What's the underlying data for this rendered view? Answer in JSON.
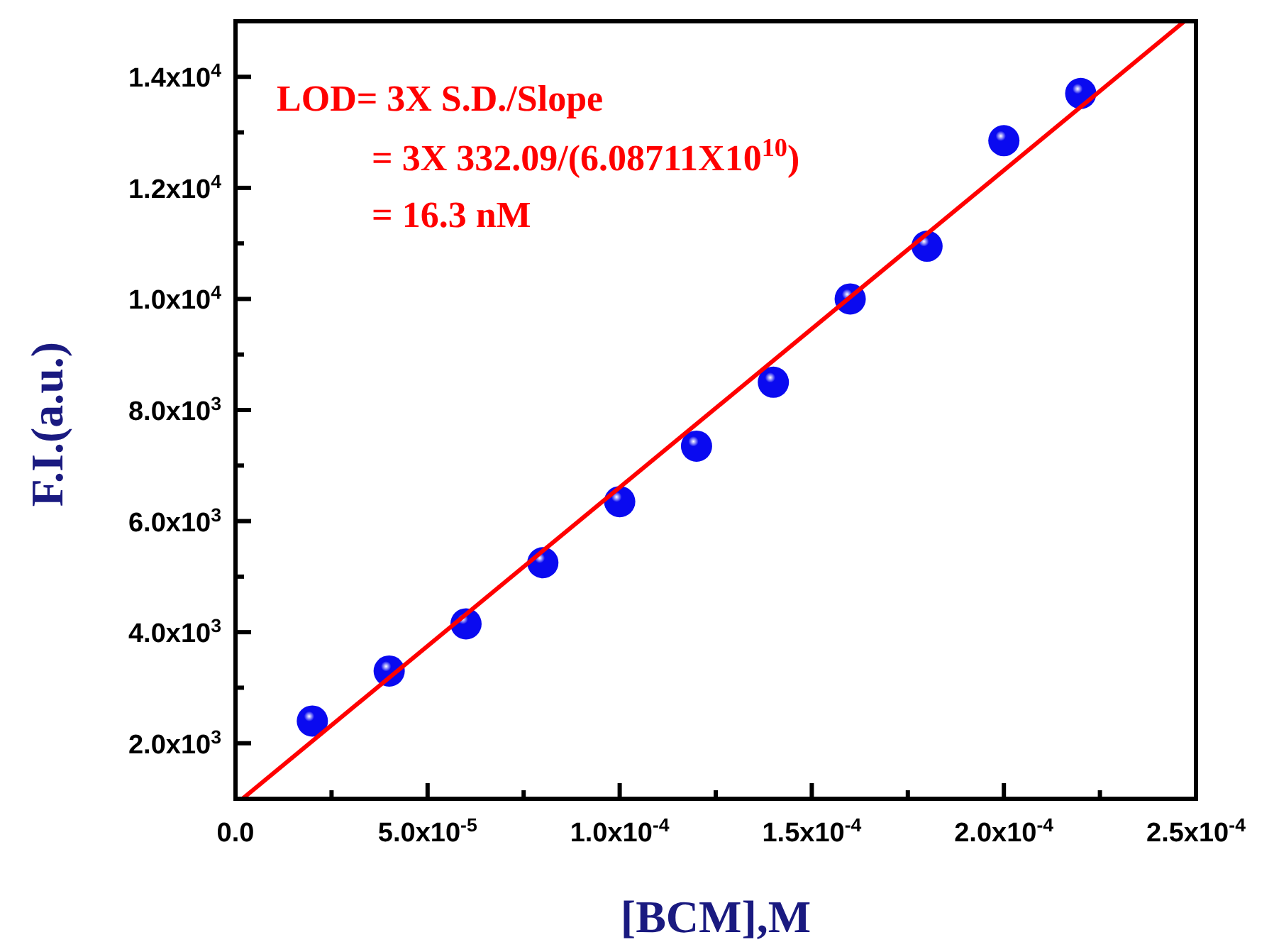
{
  "chart_data": {
    "type": "scatter",
    "xlabel": "[BCM],M",
    "ylabel": "F.I.(a.u.)",
    "xlim": [
      0,
      0.00025
    ],
    "ylim": [
      1000,
      15000
    ],
    "xticks": [
      {
        "value": 0,
        "label": "0.0"
      },
      {
        "value": 2.5e-05,
        "label": null
      },
      {
        "value": 5e-05,
        "label": "5.0x10$^{-5}$"
      },
      {
        "value": 7.5e-05,
        "label": null
      },
      {
        "value": 0.0001,
        "label": "1.0x10$^{-4}$"
      },
      {
        "value": 0.000125,
        "label": null
      },
      {
        "value": 0.00015,
        "label": "1.5x10$^{-4}$"
      },
      {
        "value": 0.000175,
        "label": null
      },
      {
        "value": 0.0002,
        "label": "2.0x10$^{-4}$"
      },
      {
        "value": 0.000225,
        "label": null
      },
      {
        "value": 0.00025,
        "label": "2.5x10$^{-4}$"
      }
    ],
    "yticks": [
      {
        "value": 2000,
        "label": "2.0x10$^{3}$"
      },
      {
        "value": 3000,
        "label": null
      },
      {
        "value": 4000,
        "label": "4.0x10$^{3}$"
      },
      {
        "value": 5000,
        "label": null
      },
      {
        "value": 6000,
        "label": "6.0x10$^{3}$"
      },
      {
        "value": 7000,
        "label": null
      },
      {
        "value": 8000,
        "label": "8.0x10$^{3}$"
      },
      {
        "value": 9000,
        "label": null
      },
      {
        "value": 10000,
        "label": "1.0x10$^{4}$"
      },
      {
        "value": 11000,
        "label": null
      },
      {
        "value": 12000,
        "label": "1.2x10$^{4}$"
      },
      {
        "value": 13000,
        "label": null
      },
      {
        "value": 14000,
        "label": "1.4x10$^{4}$"
      }
    ],
    "grid": false,
    "series": [
      {
        "marker": "circle",
        "color": "#0a0af0",
        "x": [
          2e-05,
          4e-05,
          6e-05,
          8e-05,
          0.0001,
          0.00012,
          0.00014,
          0.00016,
          0.00018,
          0.0002,
          0.00022
        ],
        "values": [
          2400,
          3300,
          4150,
          5250,
          6350,
          7350,
          8500,
          10000,
          10950,
          12850,
          13700
        ]
      },
      {
        "type": "line",
        "color": "#ff0000",
        "x": [
          1.8e-06,
          0.000247
        ],
        "values": [
          1000,
          15000
        ]
      }
    ],
    "annotations": [
      "LOD= 3X S.D./Slope",
      "= 3X 332.09/(6.08711X10$^{10}$)",
      "= 16.3 nM"
    ]
  }
}
